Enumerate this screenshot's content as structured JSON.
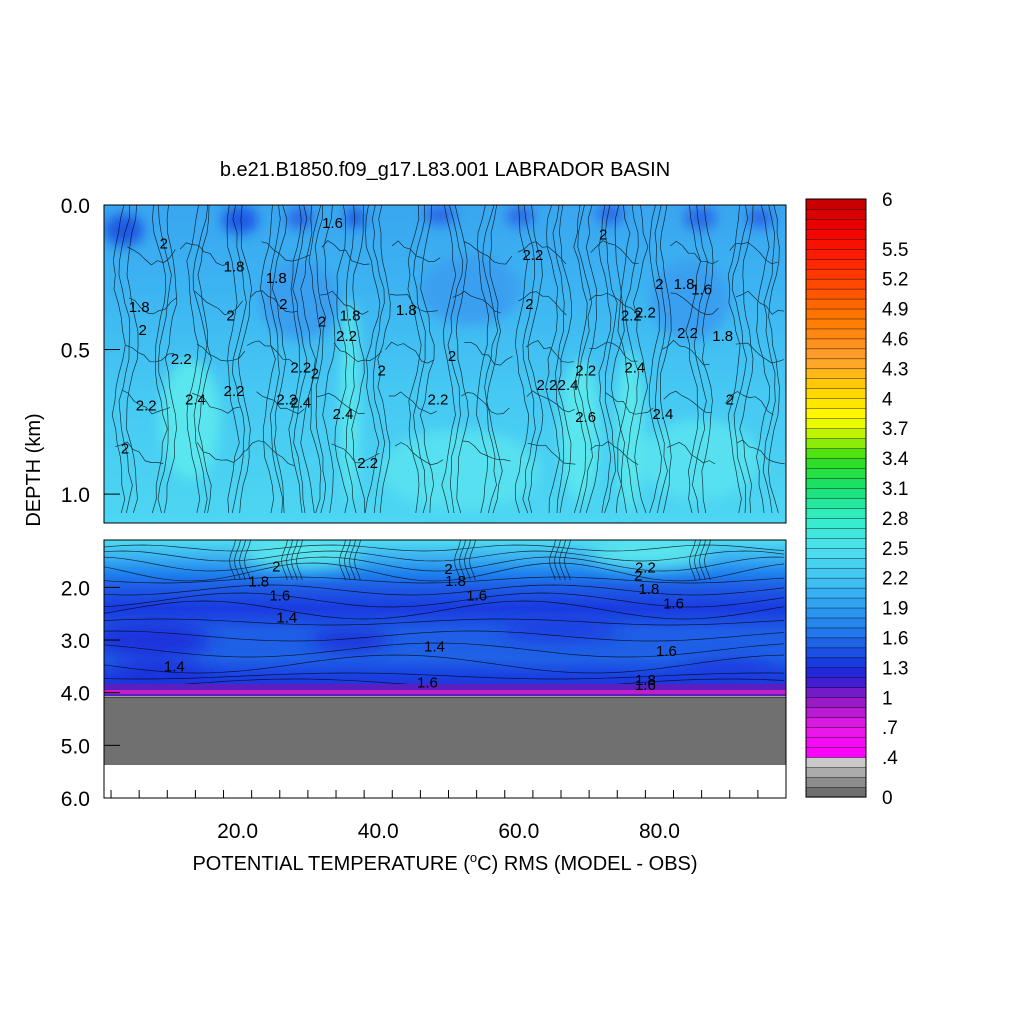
{
  "chart_data": {
    "type": "heatmap",
    "title": "b.e21.B1850.f09_g17.L83.001 LABRADOR BASIN",
    "xlabel_main": "POTENTIAL TEMPERATURE (",
    "xlabel_sup": "o",
    "xlabel_rest": "C) RMS (MODEL - OBS)",
    "ylabel": "DEPTH (km)",
    "upper_panel": {
      "ylim": [
        0.0,
        1.1
      ],
      "yticks": [
        0.0,
        0.5,
        1.0
      ],
      "ytick_labels": [
        "0.0",
        "0.5",
        "1.0"
      ]
    },
    "lower_panel": {
      "ylim": [
        1.1,
        6.0
      ],
      "yticks": [
        2.0,
        3.0,
        4.0,
        5.0,
        6.0
      ],
      "ytick_labels": [
        "2.0",
        "3.0",
        "4.0",
        "5.0",
        "6.0"
      ]
    },
    "xlim": [
      1,
      98
    ],
    "xticks": [
      20,
      40,
      60,
      80
    ],
    "xtick_labels": [
      "20.0",
      "40.0",
      "60.0",
      "80.0"
    ],
    "seafloor_depth_km": 4.1,
    "no_data_below_km": 5.35,
    "bottom_color": "#707070",
    "colorbar": {
      "min": 0,
      "max": 6,
      "labels": [
        "6",
        "5.5",
        "5.2",
        "4.9",
        "4.6",
        "4.3",
        "4",
        "3.7",
        "3.4",
        "3.1",
        "2.8",
        "2.5",
        "2.2",
        "1.9",
        "1.6",
        "1.3",
        "1",
        ".7",
        ".4",
        "0"
      ],
      "label_values": [
        6,
        5.5,
        5.2,
        4.9,
        4.6,
        4.3,
        4.0,
        3.7,
        3.4,
        3.1,
        2.8,
        2.5,
        2.2,
        1.9,
        1.6,
        1.3,
        1.0,
        0.7,
        0.4,
        0
      ]
    },
    "contour_labels": [
      {
        "text": "1.6",
        "x": 33.5,
        "z": 0.08
      },
      {
        "text": "2",
        "x": 9.5,
        "z": 0.15
      },
      {
        "text": "1.8",
        "x": 19.5,
        "z": 0.23
      },
      {
        "text": "1.8",
        "x": 25.5,
        "z": 0.27
      },
      {
        "text": "2",
        "x": 26.5,
        "z": 0.36
      },
      {
        "text": "2",
        "x": 19,
        "z": 0.4
      },
      {
        "text": "1.8",
        "x": 6,
        "z": 0.37
      },
      {
        "text": "2",
        "x": 6.5,
        "z": 0.45
      },
      {
        "text": "2",
        "x": 32,
        "z": 0.42
      },
      {
        "text": "1.8",
        "x": 36,
        "z": 0.4
      },
      {
        "text": "2.2",
        "x": 35.5,
        "z": 0.47
      },
      {
        "text": "1.8",
        "x": 44,
        "z": 0.38
      },
      {
        "text": "2",
        "x": 31,
        "z": 0.6
      },
      {
        "text": "2.2",
        "x": 12,
        "z": 0.55
      },
      {
        "text": "2.2",
        "x": 29,
        "z": 0.58
      },
      {
        "text": "2.4",
        "x": 14,
        "z": 0.69
      },
      {
        "text": "2.2",
        "x": 19.5,
        "z": 0.66
      },
      {
        "text": "2.2",
        "x": 27,
        "z": 0.69
      },
      {
        "text": "2.4",
        "x": 29,
        "z": 0.7
      },
      {
        "text": "2.2",
        "x": 7,
        "z": 0.71
      },
      {
        "text": "2",
        "x": 4,
        "z": 0.86
      },
      {
        "text": "2.4",
        "x": 35,
        "z": 0.74
      },
      {
        "text": "2.2",
        "x": 38.5,
        "z": 0.91
      },
      {
        "text": "2",
        "x": 40.5,
        "z": 0.59
      },
      {
        "text": "2",
        "x": 50.5,
        "z": 0.54
      },
      {
        "text": "2.2",
        "x": 48.5,
        "z": 0.69
      },
      {
        "text": "2",
        "x": 61.5,
        "z": 0.36
      },
      {
        "text": "2.2",
        "x": 62,
        "z": 0.19
      },
      {
        "text": "2",
        "x": 72,
        "z": 0.12
      },
      {
        "text": "2.2",
        "x": 64,
        "z": 0.64
      },
      {
        "text": "2.4",
        "x": 67,
        "z": 0.64
      },
      {
        "text": "2.2",
        "x": 69.5,
        "z": 0.59
      },
      {
        "text": "2.6",
        "x": 69.5,
        "z": 0.75
      },
      {
        "text": "2.2",
        "x": 78,
        "z": 0.39
      },
      {
        "text": "2.2",
        "x": 76,
        "z": 0.4
      },
      {
        "text": "2.4",
        "x": 76.5,
        "z": 0.58
      },
      {
        "text": "2",
        "x": 80,
        "z": 0.29
      },
      {
        "text": "1.8",
        "x": 83.5,
        "z": 0.29
      },
      {
        "text": "1.6",
        "x": 86,
        "z": 0.31
      },
      {
        "text": "2.2",
        "x": 84,
        "z": 0.46
      },
      {
        "text": "1.8",
        "x": 89,
        "z": 0.47
      },
      {
        "text": "2.4",
        "x": 80.5,
        "z": 0.74
      },
      {
        "text": "2",
        "x": 90,
        "z": 0.69
      },
      {
        "text": "2",
        "x": 25.5,
        "z": 1.7
      },
      {
        "text": "1.8",
        "x": 23,
        "z": 1.98
      },
      {
        "text": "1.6",
        "x": 26,
        "z": 2.25
      },
      {
        "text": "1.4",
        "x": 27,
        "z": 2.67
      },
      {
        "text": "1.4",
        "x": 11,
        "z": 3.6
      },
      {
        "text": "2",
        "x": 50,
        "z": 1.75
      },
      {
        "text": "1.8",
        "x": 51,
        "z": 1.97
      },
      {
        "text": "1.6",
        "x": 54,
        "z": 2.25
      },
      {
        "text": "1.4",
        "x": 48,
        "z": 3.22
      },
      {
        "text": "1.6",
        "x": 47,
        "z": 3.9
      },
      {
        "text": "2.2",
        "x": 78,
        "z": 1.72
      },
      {
        "text": "2",
        "x": 77,
        "z": 1.87
      },
      {
        "text": "1.8",
        "x": 78.5,
        "z": 2.13
      },
      {
        "text": "1.6",
        "x": 82,
        "z": 2.4
      },
      {
        "text": "1.6",
        "x": 81,
        "z": 3.3
      },
      {
        "text": "1.8",
        "x": 78,
        "z": 3.85
      },
      {
        "text": "1.6",
        "x": 78,
        "z": 3.95
      }
    ]
  }
}
